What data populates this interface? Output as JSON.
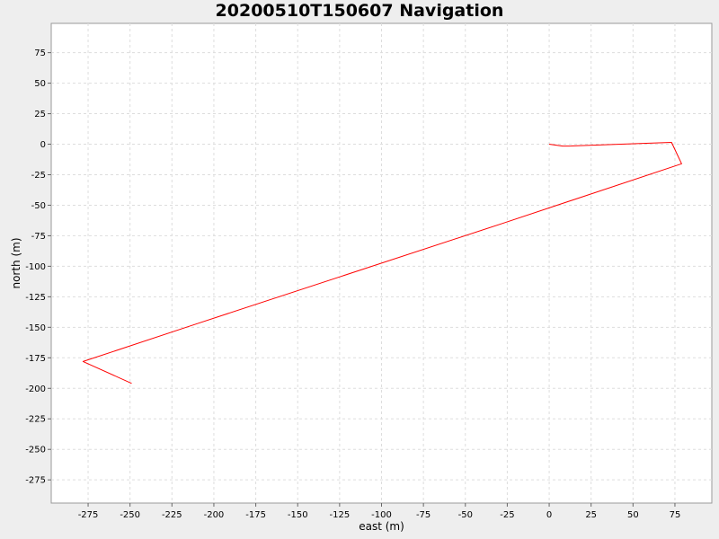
{
  "chart_data": {
    "type": "line",
    "title": "20200510T150607 Navigation",
    "xlabel": "east (m)",
    "ylabel": "north (m)",
    "xlim": [
      -297,
      97
    ],
    "ylim": [
      -294,
      99
    ],
    "x_ticks": [
      -275,
      -250,
      -225,
      -200,
      -175,
      -150,
      -125,
      -100,
      -75,
      -50,
      -25,
      0,
      25,
      50,
      75
    ],
    "y_ticks": [
      75,
      50,
      25,
      0,
      -25,
      -50,
      -75,
      -100,
      -125,
      -150,
      -175,
      -200,
      -225,
      -250,
      -275
    ],
    "grid": true,
    "series": [
      {
        "color": "#ff0000",
        "x": [
          0,
          8,
          12,
          73,
          79,
          -28,
          -210,
          -278,
          -249
        ],
        "y": [
          0,
          -1.5,
          -1.5,
          1.5,
          -16,
          -65,
          -147,
          -178,
          -196
        ]
      }
    ]
  }
}
